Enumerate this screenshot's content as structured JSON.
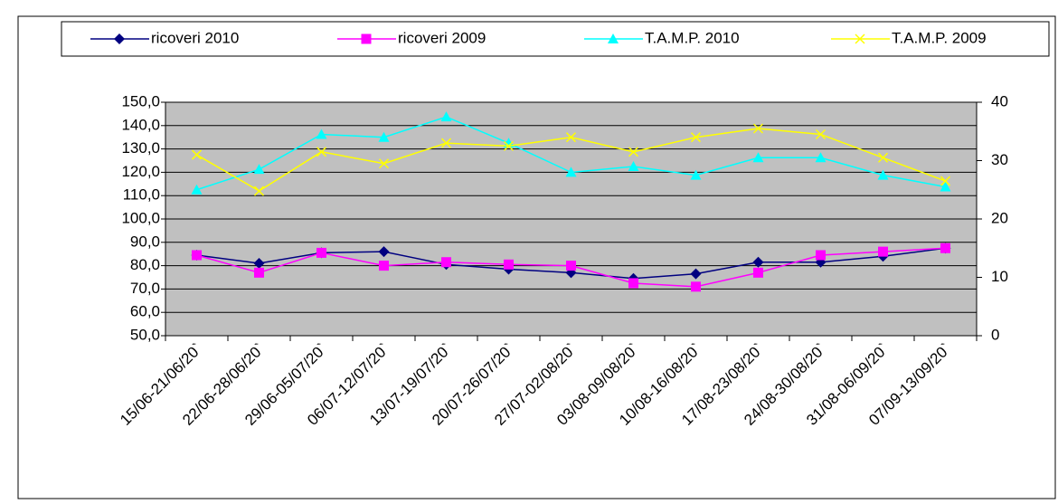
{
  "chart_data": {
    "type": "line",
    "categories": [
      "15/06-21/06/20`",
      "22/06-28/06/20`",
      "29/06-05/07/20`",
      "06/07-12/07/20`",
      "13/07-19/07/20`",
      "20/07-26/07/20`",
      "27/07-02/08/20`",
      "03/08-09/08/20`",
      "10/08-16/08/20`",
      "17/08-23/08/20`",
      "24/08-30/08/20`",
      "31/08-06/09/20`",
      "07/09-13/09/20`"
    ],
    "series": [
      {
        "name": "ricoveri 2010",
        "color": "#000080",
        "marker": "diamond",
        "values": [
          84.5,
          81,
          85.5,
          86,
          80.5,
          78.5,
          77,
          74.5,
          76.5,
          81.5,
          81.5,
          84,
          87.5
        ]
      },
      {
        "name": "ricoveri 2009",
        "color": "#ff00ff",
        "marker": "square",
        "values": [
          84.5,
          77,
          85.5,
          80,
          81.5,
          80.5,
          80,
          72.5,
          71,
          77,
          84.5,
          86,
          87.5
        ]
      },
      {
        "name": "T.A.M.P. 2010",
        "color": "#00ffff",
        "marker": "triangle",
        "axis": "y2",
        "values": [
          25,
          28.5,
          34.5,
          34,
          37.5,
          33,
          28,
          29,
          27.5,
          30.5,
          30.5,
          27.5,
          25.5
        ]
      },
      {
        "name": "T.A.M.P. 2009",
        "color": "#ffff00",
        "marker": "x",
        "axis": "y2",
        "values": [
          31,
          24.8,
          31.5,
          29.5,
          33,
          32.5,
          34,
          31.5,
          34,
          35.5,
          34.5,
          30.5,
          26.5
        ]
      }
    ],
    "ylim": [
      50,
      150
    ],
    "yticks": [
      {
        "value": 50,
        "label": "50,0"
      },
      {
        "value": 60,
        "label": "60,0"
      },
      {
        "value": 70,
        "label": "70,0"
      },
      {
        "value": 80,
        "label": "80,0"
      },
      {
        "value": 90,
        "label": "90,0"
      },
      {
        "value": 100,
        "label": "100,0"
      },
      {
        "value": 110,
        "label": "110,0"
      },
      {
        "value": 120,
        "label": "120,0"
      },
      {
        "value": 130,
        "label": "130,0"
      },
      {
        "value": 140,
        "label": "140,0"
      },
      {
        "value": 150,
        "label": "150,0"
      }
    ],
    "y2lim": [
      0,
      40
    ],
    "y2ticks": [
      0,
      10,
      20,
      30,
      40
    ],
    "grid": true,
    "legend": "top"
  }
}
